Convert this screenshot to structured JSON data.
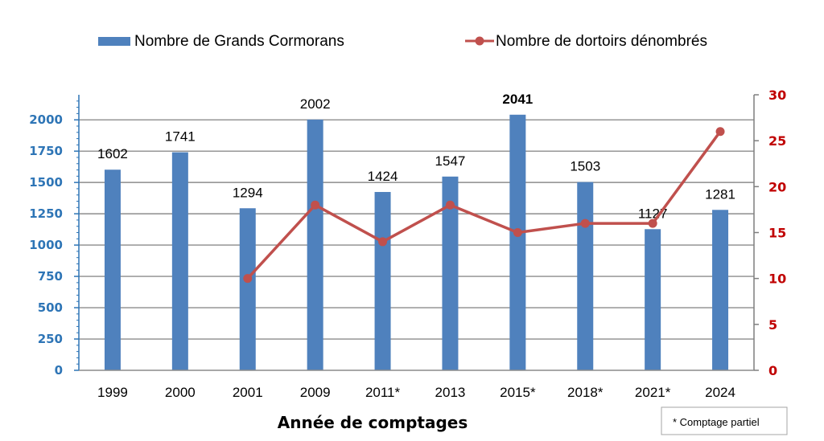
{
  "chart_data": {
    "type": "bar",
    "categories": [
      "1999",
      "2000",
      "2001",
      "2009",
      "2011*",
      "2013",
      "2015*",
      "2018*",
      "2021*",
      "2024"
    ],
    "series": [
      {
        "name": "Nombre de Grands Cormorans",
        "type": "bar",
        "axis": "left",
        "color": "#4f81bd",
        "values": [
          1602,
          1741,
          1294,
          2002,
          1424,
          1547,
          2041,
          1503,
          1127,
          1281
        ],
        "labels": [
          "1602",
          "1741",
          "1294",
          "2002",
          "1424",
          "1547",
          "2041",
          "1503",
          "1127",
          "1281"
        ],
        "bold_label_index": 6
      },
      {
        "name": "Nombre de dortoirs dénombrés",
        "type": "line",
        "axis": "right",
        "color": "#c0504d",
        "values": [
          null,
          null,
          10,
          18,
          14,
          18,
          15,
          16,
          16,
          26
        ]
      }
    ],
    "xlabel": "Année de comptages",
    "ylabel": "",
    "y2label": "",
    "ylim": [
      0,
      2200
    ],
    "y2lim": [
      0,
      30
    ],
    "yticks": [
      "0",
      "250",
      "500",
      "750",
      "1000",
      "1250",
      "1500",
      "1750",
      "2000"
    ],
    "y2ticks": [
      "0",
      "5",
      "10",
      "15",
      "20",
      "25",
      "30"
    ],
    "grid": true,
    "legend": "top",
    "axis_colors": {
      "left": "#2e75b6",
      "right": "#c00000"
    },
    "note": "* Comptage partiel"
  }
}
